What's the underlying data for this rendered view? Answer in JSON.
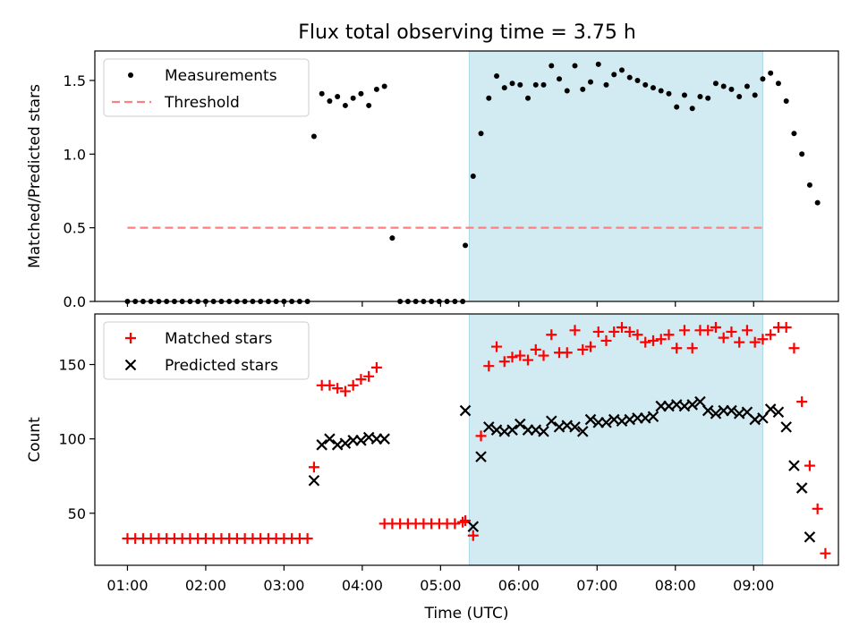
{
  "title": "Flux total observing time = 3.75 h",
  "chart_data": [
    {
      "type": "scatter",
      "ylabel": "Matched/Predicted stars",
      "xlabel": "",
      "ylim": [
        0,
        1.7
      ],
      "yticks": [
        0.0,
        0.5,
        1.0,
        1.5
      ],
      "legend": {
        "location": "top-left"
      },
      "highlight_span": {
        "start": "05:22",
        "end": "09:07",
        "color": "#add8e6"
      },
      "series": [
        {
          "name": "Measurements",
          "marker": "dot",
          "color": "#000000",
          "points": [
            [
              "01:00",
              0
            ],
            [
              "01:06",
              0
            ],
            [
              "01:12",
              0
            ],
            [
              "01:18",
              0
            ],
            [
              "01:24",
              0
            ],
            [
              "01:30",
              0
            ],
            [
              "01:36",
              0
            ],
            [
              "01:42",
              0
            ],
            [
              "01:48",
              0
            ],
            [
              "01:54",
              0
            ],
            [
              "02:00",
              0
            ],
            [
              "02:06",
              0
            ],
            [
              "02:12",
              0
            ],
            [
              "02:18",
              0
            ],
            [
              "02:24",
              0
            ],
            [
              "02:30",
              0
            ],
            [
              "02:36",
              0
            ],
            [
              "02:42",
              0
            ],
            [
              "02:48",
              0
            ],
            [
              "02:54",
              0
            ],
            [
              "03:00",
              0
            ],
            [
              "03:06",
              0
            ],
            [
              "03:12",
              0
            ],
            [
              "03:18",
              0
            ],
            [
              "03:23",
              1.12
            ],
            [
              "03:29",
              1.41
            ],
            [
              "03:35",
              1.36
            ],
            [
              "03:41",
              1.39
            ],
            [
              "03:47",
              1.33
            ],
            [
              "03:53",
              1.38
            ],
            [
              "03:59",
              1.41
            ],
            [
              "04:05",
              1.33
            ],
            [
              "04:11",
              1.44
            ],
            [
              "04:17",
              1.46
            ],
            [
              "04:23",
              0.43
            ],
            [
              "04:29",
              0
            ],
            [
              "04:35",
              0
            ],
            [
              "04:41",
              0
            ],
            [
              "04:47",
              0
            ],
            [
              "04:53",
              0
            ],
            [
              "04:59",
              0
            ],
            [
              "05:05",
              0
            ],
            [
              "05:11",
              0
            ],
            [
              "05:17",
              0
            ],
            [
              "05:19",
              0.38
            ],
            [
              "05:25",
              0.85
            ],
            [
              "05:31",
              1.14
            ],
            [
              "05:37",
              1.38
            ],
            [
              "05:43",
              1.53
            ],
            [
              "05:49",
              1.45
            ],
            [
              "05:55",
              1.48
            ],
            [
              "06:01",
              1.47
            ],
            [
              "06:07",
              1.38
            ],
            [
              "06:13",
              1.47
            ],
            [
              "06:19",
              1.47
            ],
            [
              "06:25",
              1.6
            ],
            [
              "06:31",
              1.51
            ],
            [
              "06:37",
              1.43
            ],
            [
              "06:43",
              1.6
            ],
            [
              "06:49",
              1.44
            ],
            [
              "06:55",
              1.49
            ],
            [
              "07:01",
              1.61
            ],
            [
              "07:07",
              1.47
            ],
            [
              "07:13",
              1.54
            ],
            [
              "07:19",
              1.57
            ],
            [
              "07:25",
              1.52
            ],
            [
              "07:31",
              1.5
            ],
            [
              "07:37",
              1.47
            ],
            [
              "07:43",
              1.45
            ],
            [
              "07:49",
              1.43
            ],
            [
              "07:55",
              1.41
            ],
            [
              "08:01",
              1.32
            ],
            [
              "08:07",
              1.4
            ],
            [
              "08:13",
              1.31
            ],
            [
              "08:19",
              1.39
            ],
            [
              "08:25",
              1.38
            ],
            [
              "08:31",
              1.48
            ],
            [
              "08:37",
              1.46
            ],
            [
              "08:43",
              1.44
            ],
            [
              "08:49",
              1.39
            ],
            [
              "08:55",
              1.46
            ],
            [
              "09:01",
              1.4
            ],
            [
              "09:07",
              1.51
            ],
            [
              "09:13",
              1.55
            ],
            [
              "09:19",
              1.48
            ],
            [
              "09:25",
              1.36
            ],
            [
              "09:31",
              1.14
            ],
            [
              "09:37",
              1.0
            ],
            [
              "09:43",
              0.79
            ],
            [
              "09:49",
              0.67
            ]
          ]
        },
        {
          "name": "Threshold",
          "marker": "dashed-line",
          "color": "#ff7f7f",
          "points": [
            [
              "01:00",
              0.5
            ],
            [
              "09:07",
              0.5
            ]
          ]
        }
      ]
    },
    {
      "type": "scatter",
      "ylabel": "Count",
      "xlabel": "Time (UTC)",
      "ylim": [
        15,
        184
      ],
      "yticks": [
        50,
        100,
        150
      ],
      "xticks": [
        "01:00",
        "02:00",
        "03:00",
        "04:00",
        "05:00",
        "06:00",
        "07:00",
        "08:00",
        "09:00"
      ],
      "legend": {
        "location": "top-left"
      },
      "highlight_span": {
        "start": "05:22",
        "end": "09:07",
        "color": "#add8e6"
      },
      "series": [
        {
          "name": "Matched stars",
          "marker": "plus",
          "color": "#ff0000",
          "points": [
            [
              "01:00",
              33
            ],
            [
              "01:06",
              33
            ],
            [
              "01:12",
              33
            ],
            [
              "01:18",
              33
            ],
            [
              "01:24",
              33
            ],
            [
              "01:30",
              33
            ],
            [
              "01:36",
              33
            ],
            [
              "01:42",
              33
            ],
            [
              "01:48",
              33
            ],
            [
              "01:54",
              33
            ],
            [
              "02:00",
              33
            ],
            [
              "02:06",
              33
            ],
            [
              "02:12",
              33
            ],
            [
              "02:18",
              33
            ],
            [
              "02:24",
              33
            ],
            [
              "02:30",
              33
            ],
            [
              "02:36",
              33
            ],
            [
              "02:42",
              33
            ],
            [
              "02:48",
              33
            ],
            [
              "02:54",
              33
            ],
            [
              "03:00",
              33
            ],
            [
              "03:06",
              33
            ],
            [
              "03:12",
              33
            ],
            [
              "03:18",
              33
            ],
            [
              "03:23",
              81
            ],
            [
              "03:29",
              136
            ],
            [
              "03:35",
              136
            ],
            [
              "03:41",
              134
            ],
            [
              "03:47",
              132
            ],
            [
              "03:53",
              136
            ],
            [
              "03:59",
              140
            ],
            [
              "04:05",
              142
            ],
            [
              "04:11",
              148
            ],
            [
              "04:17",
              43
            ],
            [
              "04:23",
              43
            ],
            [
              "04:29",
              43
            ],
            [
              "04:35",
              43
            ],
            [
              "04:41",
              43
            ],
            [
              "04:47",
              43
            ],
            [
              "04:53",
              43
            ],
            [
              "04:59",
              43
            ],
            [
              "05:05",
              43
            ],
            [
              "05:11",
              43
            ],
            [
              "05:17",
              44
            ],
            [
              "05:19",
              45
            ],
            [
              "05:25",
              35
            ],
            [
              "05:31",
              102
            ],
            [
              "05:37",
              149
            ],
            [
              "05:43",
              162
            ],
            [
              "05:49",
              152
            ],
            [
              "05:55",
              155
            ],
            [
              "06:01",
              156
            ],
            [
              "06:07",
              153
            ],
            [
              "06:13",
              160
            ],
            [
              "06:19",
              156
            ],
            [
              "06:25",
              170
            ],
            [
              "06:31",
              158
            ],
            [
              "06:37",
              158
            ],
            [
              "06:43",
              173
            ],
            [
              "06:49",
              160
            ],
            [
              "06:55",
              162
            ],
            [
              "07:01",
              172
            ],
            [
              "07:07",
              166
            ],
            [
              "07:13",
              172
            ],
            [
              "07:19",
              175
            ],
            [
              "07:25",
              172
            ],
            [
              "07:31",
              170
            ],
            [
              "07:37",
              165
            ],
            [
              "07:43",
              166
            ],
            [
              "07:49",
              167
            ],
            [
              "07:55",
              170
            ],
            [
              "08:01",
              161
            ],
            [
              "08:07",
              173
            ],
            [
              "08:13",
              161
            ],
            [
              "08:19",
              173
            ],
            [
              "08:25",
              173
            ],
            [
              "08:31",
              175
            ],
            [
              "08:37",
              168
            ],
            [
              "08:43",
              172
            ],
            [
              "08:49",
              165
            ],
            [
              "08:55",
              173
            ],
            [
              "09:01",
              165
            ],
            [
              "09:07",
              167
            ],
            [
              "09:13",
              170
            ],
            [
              "09:19",
              175
            ],
            [
              "09:25",
              175
            ],
            [
              "09:31",
              161
            ],
            [
              "09:37",
              125
            ],
            [
              "09:43",
              82
            ],
            [
              "09:49",
              53
            ],
            [
              "09:55",
              23
            ]
          ]
        },
        {
          "name": "Predicted stars",
          "marker": "x",
          "color": "#000000",
          "points": [
            [
              "03:23",
              72
            ],
            [
              "03:29",
              96
            ],
            [
              "03:35",
              100
            ],
            [
              "03:41",
              96
            ],
            [
              "03:47",
              97
            ],
            [
              "03:53",
              99
            ],
            [
              "03:59",
              99
            ],
            [
              "04:05",
              101
            ],
            [
              "04:11",
              100
            ],
            [
              "04:17",
              100
            ],
            [
              "05:19",
              119
            ],
            [
              "05:25",
              41
            ],
            [
              "05:31",
              88
            ],
            [
              "05:37",
              108
            ],
            [
              "05:43",
              106
            ],
            [
              "05:49",
              105
            ],
            [
              "05:55",
              106
            ],
            [
              "06:01",
              110
            ],
            [
              "06:07",
              106
            ],
            [
              "06:13",
              106
            ],
            [
              "06:19",
              105
            ],
            [
              "06:25",
              112
            ],
            [
              "06:31",
              108
            ],
            [
              "06:37",
              109
            ],
            [
              "06:43",
              108
            ],
            [
              "06:49",
              105
            ],
            [
              "06:55",
              113
            ],
            [
              "07:01",
              111
            ],
            [
              "07:07",
              111
            ],
            [
              "07:13",
              113
            ],
            [
              "07:19",
              112
            ],
            [
              "07:25",
              113
            ],
            [
              "07:31",
              114
            ],
            [
              "07:37",
              114
            ],
            [
              "07:43",
              115
            ],
            [
              "07:49",
              122
            ],
            [
              "07:55",
              122
            ],
            [
              "08:01",
              123
            ],
            [
              "08:07",
              122
            ],
            [
              "08:13",
              123
            ],
            [
              "08:19",
              125
            ],
            [
              "08:25",
              119
            ],
            [
              "08:31",
              117
            ],
            [
              "08:37",
              119
            ],
            [
              "08:43",
              119
            ],
            [
              "08:49",
              117
            ],
            [
              "08:55",
              118
            ],
            [
              "09:01",
              113
            ],
            [
              "09:07",
              114
            ],
            [
              "09:13",
              120
            ],
            [
              "09:19",
              118
            ],
            [
              "09:25",
              108
            ],
            [
              "09:31",
              82
            ],
            [
              "09:37",
              67
            ],
            [
              "09:43",
              34
            ]
          ]
        }
      ]
    }
  ]
}
